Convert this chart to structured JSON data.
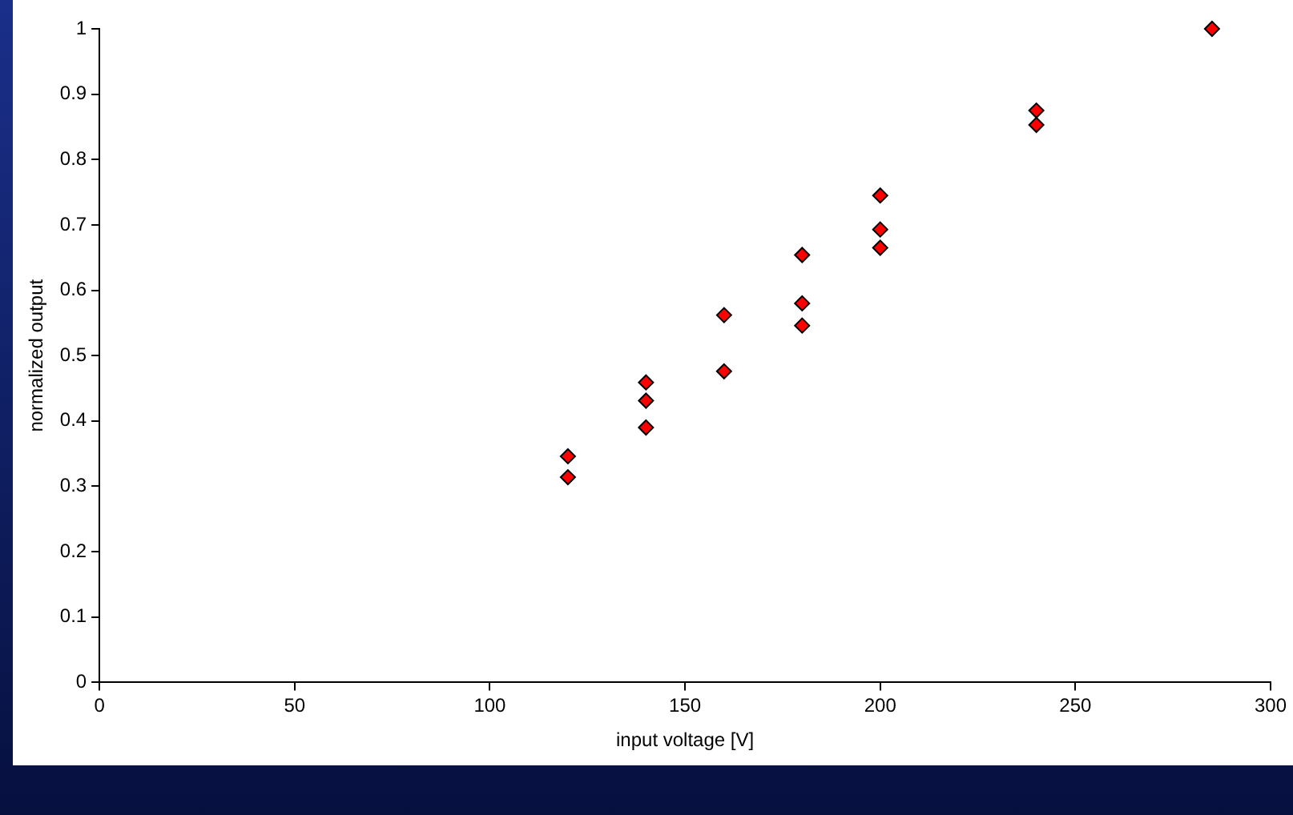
{
  "chart_data": {
    "type": "scatter",
    "xlabel": "input voltage [V]",
    "ylabel": "normalized output",
    "x": [
      120,
      120,
      140,
      140,
      140,
      160,
      160,
      180,
      180,
      180,
      200,
      200,
      200,
      240,
      240,
      285
    ],
    "series": [
      {
        "color": "#ff0000",
        "values": [
          0.346,
          0.314,
          0.459,
          0.431,
          0.39,
          0.562,
          0.476,
          0.654,
          0.58,
          0.546,
          0.745,
          0.693,
          0.665,
          0.875,
          0.853,
          1.0
        ]
      }
    ],
    "xlim": [
      0,
      300
    ],
    "xticks": [
      0,
      50,
      100,
      150,
      200,
      250,
      300
    ],
    "ylim": [
      0,
      1
    ],
    "yticks": [
      0,
      0.1,
      0.2,
      0.3,
      0.4,
      0.5,
      0.6,
      0.7,
      0.8,
      0.9,
      1
    ],
    "grid": false,
    "legend": false,
    "marker": "diamond"
  }
}
